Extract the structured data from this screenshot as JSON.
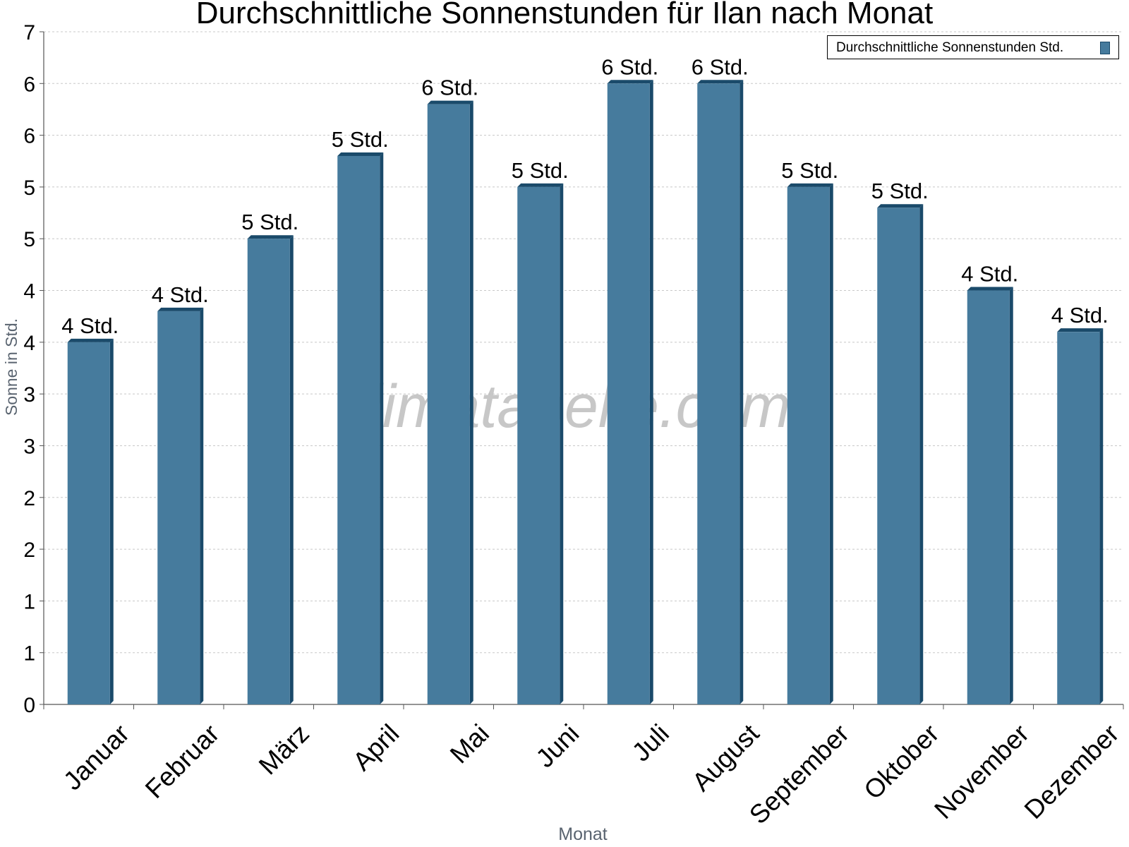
{
  "title": "Durchschnittliche Sonnenstunden für Ilan nach Monat",
  "watermark": "klimatabelle.com",
  "legend": {
    "label": "Durchschnittliche Sonnenstunden Std.",
    "swatch_color": "#467b9d"
  },
  "colors": {
    "bar_front": "#467b9d",
    "bar_side": "#1a4a6a",
    "grid": "#c8c8c8"
  },
  "chart_data": {
    "type": "bar",
    "title": "Durchschnittliche Sonnenstunden für Ilan nach Monat",
    "xlabel": "Monat",
    "ylabel": "Sonne in Std.",
    "ylim": [
      0,
      6.5
    ],
    "ytick_values": [
      0,
      0.5,
      1,
      1.5,
      2,
      2.5,
      3,
      3.5,
      4,
      4.5,
      5,
      5.5,
      6,
      6.5
    ],
    "ytick_labels": [
      "0",
      "1",
      "1",
      "2",
      "2",
      "3",
      "3",
      "4",
      "4",
      "5",
      "5",
      "6",
      "6",
      "7"
    ],
    "grid": true,
    "legend_position": "top-right",
    "categories": [
      "Januar",
      "Februar",
      "März",
      "April",
      "Mai",
      "Juni",
      "Juli",
      "August",
      "September",
      "Oktober",
      "November",
      "Dezember"
    ],
    "series": [
      {
        "name": "Durchschnittliche Sonnenstunden Std.",
        "values": [
          3.5,
          3.8,
          4.5,
          5.3,
          5.8,
          5.0,
          6.0,
          6.0,
          5.0,
          4.8,
          4.0,
          3.6
        ],
        "data_labels": [
          "4 Std.",
          "4 Std.",
          "5 Std.",
          "5 Std.",
          "6 Std.",
          "5 Std.",
          "6 Std.",
          "6 Std.",
          "5 Std.",
          "5 Std.",
          "4 Std.",
          "4 Std."
        ]
      }
    ]
  }
}
